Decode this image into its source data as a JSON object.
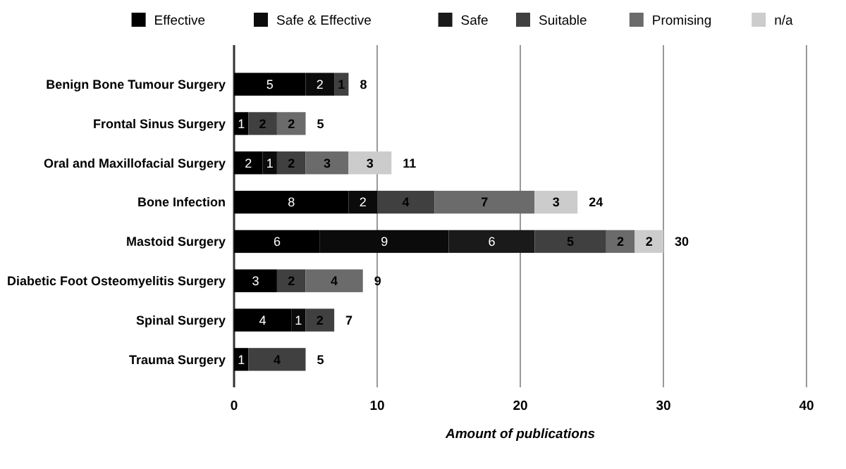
{
  "chart_data": {
    "type": "bar",
    "orientation": "horizontal",
    "stacked": true,
    "xlabel": "Amount of publications",
    "categories": [
      "Benign Bone Tumour Surgery",
      "Frontal Sinus Surgery",
      "Oral and Maxillofacial Surgery",
      "Bone Infection",
      "Mastoid Surgery",
      "Diabetic Foot Osteomyelitis Surgery",
      "Spinal Surgery",
      "Trauma Surgery"
    ],
    "series": [
      {
        "name": "Effective",
        "color": "#000000",
        "values": [
          5,
          1,
          2,
          8,
          6,
          3,
          4,
          1
        ]
      },
      {
        "name": "Safe & Effective",
        "color": "#0b0b0b",
        "values": [
          2,
          null,
          1,
          2,
          9,
          null,
          1,
          null
        ]
      },
      {
        "name": "Safe",
        "color": "#1a1a1a",
        "values": [
          null,
          null,
          null,
          null,
          6,
          null,
          null,
          null
        ]
      },
      {
        "name": "Suitable",
        "color": "#404040",
        "values": [
          1,
          2,
          2,
          4,
          5,
          2,
          2,
          4
        ]
      },
      {
        "name": "Promising",
        "color": "#6b6b6b",
        "values": [
          null,
          2,
          3,
          7,
          2,
          4,
          null,
          null
        ]
      },
      {
        "name": "n/a",
        "color": "#cccccc",
        "values": [
          null,
          null,
          3,
          3,
          2,
          null,
          null,
          null
        ]
      }
    ],
    "data_labels": true,
    "totals": [
      "8",
      "5",
      "11",
      "24",
      "30",
      "9",
      "7",
      "5"
    ],
    "xlim": [
      0,
      40
    ],
    "xticks": [
      0,
      10,
      20,
      30,
      40
    ],
    "grid": "x",
    "legend": "top"
  }
}
